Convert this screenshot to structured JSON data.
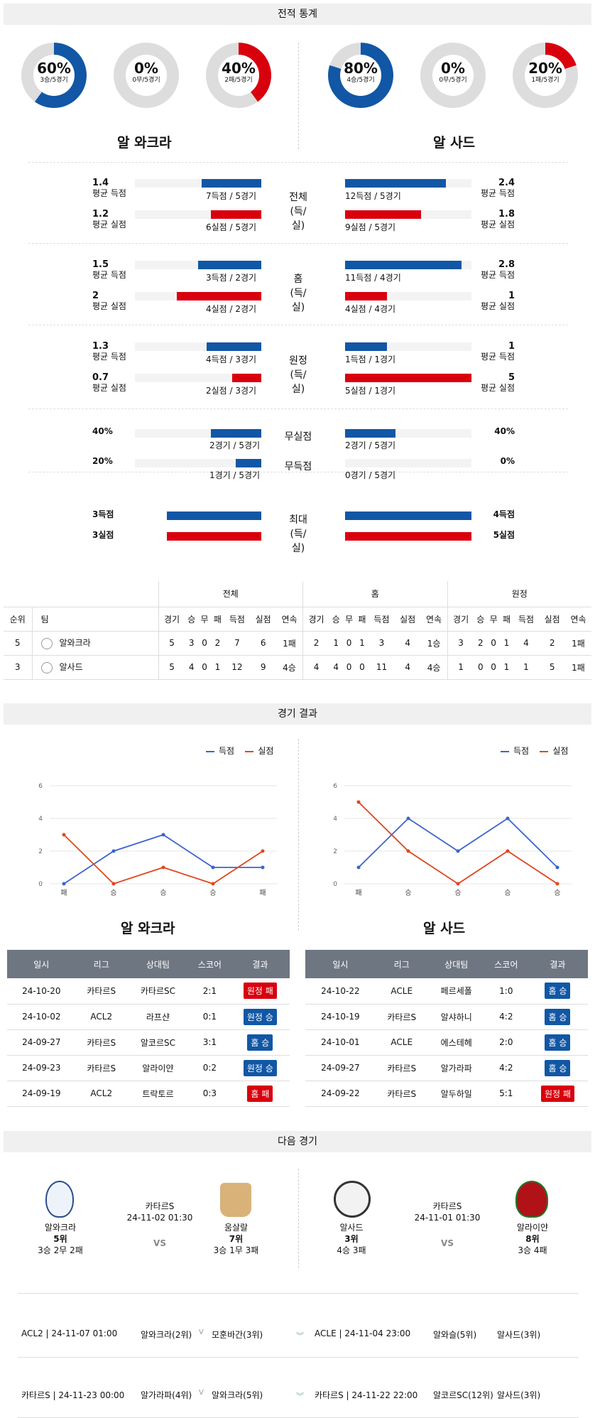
{
  "sections": {
    "record": "전적 통계",
    "results": "경기 결과",
    "next": "다음 경기"
  },
  "teams": {
    "left": "알 와크라",
    "right": "알 사드"
  },
  "donuts": [
    {
      "pct": "60%",
      "sub": "3승/5경기",
      "color": "#1157a5",
      "value": 60
    },
    {
      "pct": "0%",
      "sub": "0무/5경기",
      "color": "#1157a5",
      "value": 0
    },
    {
      "pct": "40%",
      "sub": "2패/5경기",
      "color": "#d9000d",
      "value": 40
    },
    {
      "pct": "80%",
      "sub": "4승/5경기",
      "color": "#1157a5",
      "value": 80
    },
    {
      "pct": "0%",
      "sub": "0무/5경기",
      "color": "#1157a5",
      "value": 0
    },
    {
      "pct": "20%",
      "sub": "1패/5경기",
      "color": "#d9000d",
      "value": 20
    }
  ],
  "stats": [
    {
      "center": [
        "전체",
        "(득/실)"
      ],
      "rows": [
        {
          "lv": "1.4",
          "lt": "평균 득점",
          "lb": "7득점 / 5경기",
          "lf": 0.47,
          "rv": "2.4",
          "rt": "평균 득점",
          "rb": "12득점 / 5경기",
          "rf": 0.8,
          "c": "blue"
        },
        {
          "lv": "1.2",
          "lt": "평균 실점",
          "lb": "6실점 / 5경기",
          "lf": 0.4,
          "rv": "1.8",
          "rt": "평균 실점",
          "rb": "9실점 / 5경기",
          "rf": 0.6,
          "c": "red"
        }
      ]
    },
    {
      "center": [
        "홈",
        "(득/실)"
      ],
      "rows": [
        {
          "lv": "1.5",
          "lt": "평균 득점",
          "lb": "3득점 / 2경기",
          "lf": 0.5,
          "rv": "2.8",
          "rt": "평균 득점",
          "rb": "11득점 / 4경기",
          "rf": 0.92,
          "c": "blue"
        },
        {
          "lv": "2",
          "lt": "평균 실점",
          "lb": "4실점 / 2경기",
          "lf": 0.67,
          "rv": "1",
          "rt": "평균 실점",
          "rb": "4실점 / 4경기",
          "rf": 0.33,
          "c": "red"
        }
      ]
    },
    {
      "center": [
        "원정",
        "(득/실)"
      ],
      "rows": [
        {
          "lv": "1.3",
          "lt": "평균 득점",
          "lb": "4득점 / 3경기",
          "lf": 0.43,
          "rv": "1",
          "rt": "평균 득점",
          "rb": "1득점 / 1경기",
          "rf": 0.33,
          "c": "blue"
        },
        {
          "lv": "0.7",
          "lt": "평균 실점",
          "lb": "2실점 / 3경기",
          "lf": 0.23,
          "rv": "5",
          "rt": "평균 실점",
          "rb": "5실점 / 1경기",
          "rf": 1.0,
          "c": "red"
        }
      ]
    }
  ],
  "clean": [
    {
      "center": "무실점",
      "lv": "40%",
      "lb": "2경기 / 5경기",
      "lf": 0.4,
      "rv": "40%",
      "rb": "2경기 / 5경기",
      "rf": 0.4
    },
    {
      "center": "무득점",
      "lv": "20%",
      "lb": "1경기 / 5경기",
      "lf": 0.2,
      "rv": "0%",
      "rb": "0경기 / 5경기",
      "rf": 0
    }
  ],
  "maxrow": {
    "center": [
      "최대",
      "(득/실)"
    ],
    "l1": "3득점",
    "l2": "3실점",
    "r1": "4득점",
    "r2": "5실점",
    "lf": 0.75,
    "rf": 1.0
  },
  "standings": {
    "groups": [
      "전체",
      "홈",
      "원정"
    ],
    "head": [
      "순위",
      "팀",
      "경기",
      "승",
      "무",
      "패",
      "득점",
      "실점",
      "연속",
      "경기",
      "승",
      "무",
      "패",
      "득점",
      "실점",
      "연속",
      "경기",
      "승",
      "무",
      "패",
      "득점",
      "실점",
      "연속"
    ],
    "rows": [
      [
        "5",
        "알와크라",
        "5",
        "3",
        "0",
        "2",
        "7",
        "6",
        "1패",
        "2",
        "1",
        "0",
        "1",
        "3",
        "4",
        "1승",
        "3",
        "2",
        "0",
        "1",
        "4",
        "2",
        "1패"
      ],
      [
        "3",
        "알사드",
        "5",
        "4",
        "0",
        "1",
        "12",
        "9",
        "4승",
        "4",
        "4",
        "0",
        "0",
        "11",
        "4",
        "4승",
        "1",
        "0",
        "0",
        "1",
        "1",
        "5",
        "1패"
      ]
    ]
  },
  "legend": {
    "scored": "득점",
    "conceded": "실점"
  },
  "chart_data": [
    {
      "type": "line",
      "x": [
        "패",
        "승",
        "승",
        "승",
        "패"
      ],
      "ylim": [
        0,
        6
      ],
      "yticks": [
        "0",
        "2",
        "4",
        "6"
      ],
      "series": [
        {
          "name": "득점",
          "values": [
            0,
            2,
            3,
            1,
            1
          ]
        },
        {
          "name": "실점",
          "values": [
            3,
            0,
            1,
            0,
            2
          ]
        }
      ],
      "legend": "top-center",
      "title": "",
      "xlabel": "",
      "ylabel": ""
    },
    {
      "type": "line",
      "x": [
        "패",
        "승",
        "승",
        "승",
        "승"
      ],
      "ylim": [
        0,
        6
      ],
      "yticks": [
        "0",
        "2",
        "4",
        "6"
      ],
      "series": [
        {
          "name": "득점",
          "values": [
            1,
            4,
            2,
            4,
            1
          ]
        },
        {
          "name": "실점",
          "values": [
            5,
            2,
            0,
            2,
            0
          ]
        }
      ],
      "legend": "top-center",
      "title": "",
      "xlabel": "",
      "ylabel": ""
    }
  ],
  "match_head": [
    "일시",
    "리그",
    "상대팀",
    "스코어",
    "결과"
  ],
  "matches_left": [
    [
      "24-10-20",
      "카타르S",
      "카타르SC",
      "2:1",
      "원정 패",
      "red"
    ],
    [
      "24-10-02",
      "ACL2",
      "라프샨",
      "0:1",
      "원정 승",
      "blue"
    ],
    [
      "24-09-27",
      "카타르S",
      "알코르SC",
      "3:1",
      "홈 승",
      "blue"
    ],
    [
      "24-09-23",
      "카타르S",
      "알라이얀",
      "0:2",
      "원정 승",
      "blue"
    ],
    [
      "24-09-19",
      "ACL2",
      "트락토르",
      "0:3",
      "홈 패",
      "red"
    ]
  ],
  "matches_right": [
    [
      "24-10-22",
      "ACLE",
      "페르세폴",
      "1:0",
      "홈 승",
      "blue"
    ],
    [
      "24-10-19",
      "카타르S",
      "알샤하니",
      "4:2",
      "홈 승",
      "blue"
    ],
    [
      "24-10-01",
      "ACLE",
      "에스테헤",
      "2:0",
      "홈 승",
      "blue"
    ],
    [
      "24-09-27",
      "카타르S",
      "알가라파",
      "4:2",
      "홈 승",
      "blue"
    ],
    [
      "24-09-22",
      "카타르S",
      "알두하일",
      "5:1",
      "원정 패",
      "red"
    ]
  ],
  "next": {
    "left": {
      "home": "알와크라",
      "home_rank": "5위",
      "home_rec": "3승 2무 2패",
      "league": "카타르S",
      "time": "24-11-02 01:30",
      "vs": "VS",
      "away": "움살랄",
      "away_rank": "7위",
      "away_rec": "3승 1무 3패"
    },
    "right": {
      "home": "알사드",
      "home_rank": "3위",
      "home_rec": "4승 3패",
      "league": "카타르S",
      "time": "24-11-01 01:30",
      "vs": "VS",
      "away": "알라이얀",
      "away_rank": "8위",
      "away_rec": "3승 4패"
    }
  },
  "upcoming": [
    {
      "l_info": "ACL2 | 24-11-07 01:00",
      "l_teams": "알와크라(2위)",
      "l_opp": "모훈바간(3위)",
      "r_info": "ACLE | 24-11-04 23:00",
      "r_teams": "알와슬(5위)",
      "r_opp": "알사드(3위)"
    },
    {
      "l_info": "카타르S | 24-11-23 00:00",
      "l_teams": "알가라파(4위)",
      "l_opp": "알와크라(5위)",
      "r_info": "카타르S | 24-11-22 22:00",
      "r_teams": "알코르SC(12위)",
      "r_opp": "알사드(3위)"
    }
  ]
}
